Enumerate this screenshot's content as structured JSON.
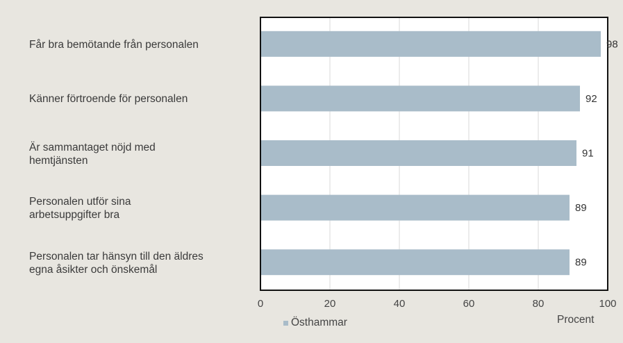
{
  "chart_data": {
    "type": "bar",
    "orientation": "horizontal",
    "categories": [
      "Får bra bemötande från personalen",
      "Känner förtroende för personalen",
      "Är sammantaget nöjd med\nhemtjänsten",
      "Personalen utför sina\narbetsuppgifter bra",
      "Personalen tar hänsyn till den äldres\negna åsikter och önskemål"
    ],
    "series": [
      {
        "name": "Östhammar",
        "values": [
          98,
          92,
          91,
          89,
          89
        ],
        "color": "#a9bcc9"
      }
    ],
    "xlim": [
      0,
      100
    ],
    "x_ticks": [
      0,
      20,
      40,
      60,
      80,
      100
    ],
    "xlabel": "Procent",
    "grid": true,
    "legend": "bottom-center",
    "background": "#e8e6e0",
    "plot_background": "#ffffff"
  }
}
